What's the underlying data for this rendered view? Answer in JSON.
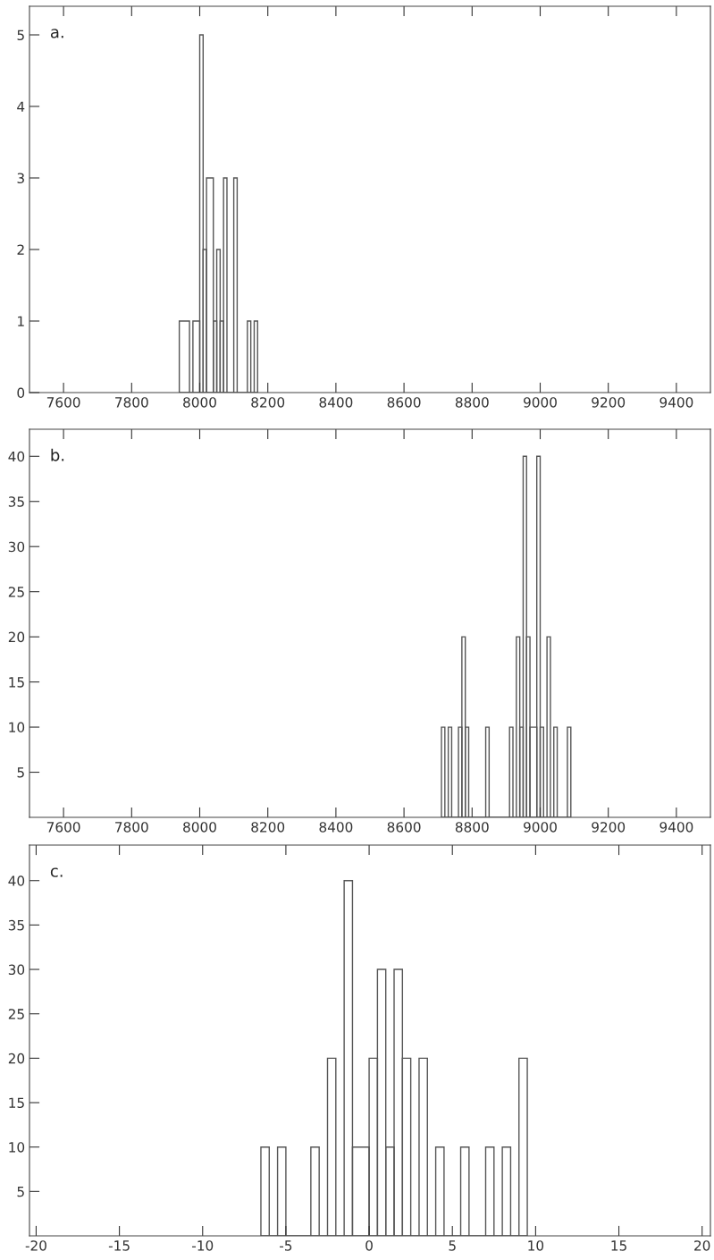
{
  "chart_data": [
    {
      "type": "histogram",
      "annotations": [
        "a."
      ],
      "color": "#555555",
      "bins": [
        7940,
        7970,
        7980,
        8000,
        8010,
        8020,
        8040,
        8050,
        8060,
        8070,
        8080,
        8100,
        8110,
        8140,
        8150,
        8160,
        8170
      ],
      "values": [
        1,
        0,
        1,
        5,
        2,
        3,
        1,
        2,
        1,
        3,
        0,
        3,
        0,
        1,
        0,
        1
      ],
      "xlim": [
        7500,
        9500
      ],
      "xticks": [
        7600,
        7800,
        8000,
        8200,
        8400,
        8600,
        8800,
        9000,
        9200,
        9400
      ],
      "ylim": [
        0,
        5.4
      ],
      "yticks": [
        0,
        1,
        2,
        3,
        4,
        5
      ],
      "grid": false
    },
    {
      "type": "histogram",
      "annotations": [
        "b."
      ],
      "color": "#555555",
      "bins": [
        8710,
        8720,
        8730,
        8740,
        8760,
        8770,
        8780,
        8790,
        8840,
        8850,
        8910,
        8920,
        8930,
        8940,
        8950,
        8960,
        8970,
        8990,
        9000,
        9010,
        9020,
        9030,
        9040,
        9050,
        9080,
        9090
      ],
      "values": [
        10,
        0,
        10,
        0,
        10,
        20,
        10,
        0,
        10,
        0,
        10,
        0,
        20,
        10,
        40,
        20,
        10,
        40,
        10,
        0,
        20,
        0,
        10,
        0,
        10
      ],
      "xlim": [
        7500,
        9500
      ],
      "xticks": [
        7600,
        7800,
        8000,
        8200,
        8400,
        8600,
        8800,
        9000,
        9200,
        9400
      ],
      "ylim": [
        0,
        43
      ],
      "yticks": [
        5,
        10,
        15,
        20,
        25,
        30,
        35,
        40
      ],
      "grid": false
    },
    {
      "type": "histogram",
      "annotations": [
        "c."
      ],
      "color": "#555555",
      "bins": [
        -6.5,
        -6,
        -5.5,
        -5,
        -3.5,
        -3,
        -2.5,
        -2,
        -1.5,
        -1,
        0,
        0.5,
        1,
        1.5,
        2,
        2.5,
        3,
        3.5,
        4,
        4.5,
        5.5,
        6,
        7,
        7.5,
        8,
        8.5,
        9,
        9.5
      ],
      "values": [
        10,
        0,
        10,
        0,
        10,
        0,
        20,
        0,
        40,
        10,
        20,
        30,
        10,
        30,
        20,
        0,
        20,
        0,
        10,
        0,
        10,
        0,
        10,
        0,
        10,
        0,
        20
      ],
      "xlim": [
        -20.4,
        20.5
      ],
      "xticks": [
        -20,
        -15,
        -10,
        -5,
        0,
        5,
        10,
        15,
        20
      ],
      "ylim": [
        0,
        44
      ],
      "yticks": [
        5,
        10,
        15,
        20,
        25,
        30,
        35,
        40
      ],
      "grid": false
    }
  ]
}
